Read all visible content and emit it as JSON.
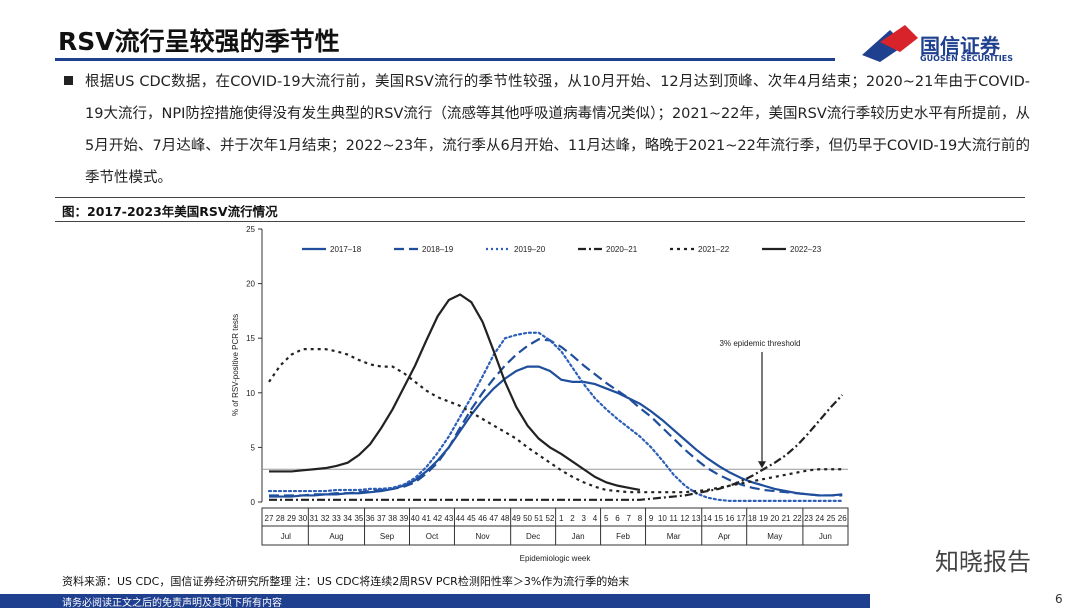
{
  "header": {
    "title": "RSV流行呈较强的季节性",
    "logo_cn": "国信证券",
    "logo_en": "GUOSEN SECURITIES"
  },
  "body": {
    "bullet": "根据US CDC数据，在COVID-19大流行前，美国RSV流行的季节性较强，从10月开始、12月达到顶峰、次年4月结束；2020~21年由于COVID-19大流行，NPI防控措施使得没有发生典型的RSV流行（流感等其他呼吸道病毒情况类似）；2021~22年，美国RSV流行季较历史水平有所提前，从5月开始、7月达峰、并于次年1月结束；2022~23年，流行季从6月开始、11月达峰，略晚于2021~22年流行季，但仍早于COVID-19大流行前的季节性模式。"
  },
  "figure": {
    "caption": "图：2017-2023年美国RSV流行情况",
    "source": "资料来源：US CDC，国信证券经济研究所整理   注：US CDC将连续2周RSV PCR检测阳性率＞3%作为流行季的始末"
  },
  "chart_data": {
    "type": "line",
    "x_label": "Epidemiologic week",
    "y_label": "% of RSV-positive PCR tests",
    "categories": [
      "27",
      "28",
      "29",
      "30",
      "31",
      "32",
      "33",
      "34",
      "35",
      "36",
      "37",
      "38",
      "39",
      "40",
      "41",
      "42",
      "43",
      "44",
      "45",
      "46",
      "47",
      "48",
      "49",
      "50",
      "51",
      "52",
      "1",
      "2",
      "3",
      "4",
      "5",
      "6",
      "7",
      "8",
      "9",
      "10",
      "11",
      "12",
      "13",
      "14",
      "15",
      "16",
      "17",
      "18",
      "19",
      "20",
      "21",
      "22",
      "23",
      "24",
      "25",
      "26"
    ],
    "months": [
      "Jul",
      "Aug",
      "Sep",
      "Oct",
      "Nov",
      "Dec",
      "Jan",
      "Feb",
      "Mar",
      "Apr",
      "May",
      "Jun"
    ],
    "ylim": [
      0,
      25
    ],
    "yticks": [
      0,
      5,
      10,
      15,
      20,
      25
    ],
    "legend": "top",
    "grid": false,
    "threshold": {
      "value": 3,
      "label": "3% epidemic threshold"
    },
    "series": [
      {
        "name": "2017–18",
        "color": "#1f4e9c",
        "dash": "solid",
        "values": [
          0.5,
          0.5,
          0.5,
          0.6,
          0.6,
          0.7,
          0.7,
          0.8,
          0.8,
          0.9,
          1.0,
          1.2,
          1.5,
          2.0,
          2.8,
          3.8,
          5.0,
          6.5,
          8.0,
          9.3,
          10.4,
          11.3,
          12.0,
          12.4,
          12.4,
          12.0,
          11.2,
          11.0,
          11.0,
          10.8,
          10.4,
          10.0,
          9.5,
          9.0,
          8.3,
          7.5,
          6.6,
          5.7,
          4.8,
          4.0,
          3.3,
          2.7,
          2.2,
          1.8,
          1.5,
          1.2,
          1.0,
          0.8,
          0.7,
          0.6,
          0.6,
          0.7
        ]
      },
      {
        "name": "2018–19",
        "color": "#1f4e9c",
        "dash": "dashed",
        "values": [
          0.6,
          0.6,
          0.6,
          0.6,
          0.7,
          0.7,
          0.8,
          0.8,
          0.9,
          1.0,
          1.1,
          1.2,
          1.4,
          1.8,
          2.6,
          3.6,
          5.0,
          6.8,
          8.5,
          10.0,
          11.3,
          12.5,
          13.5,
          14.3,
          14.9,
          14.8,
          14.2,
          13.4,
          12.5,
          11.7,
          10.9,
          10.2,
          9.5,
          8.6,
          7.8,
          6.8,
          5.8,
          4.8,
          3.9,
          3.1,
          2.5,
          2.0,
          1.6,
          1.3,
          1.1,
          1.0,
          0.9,
          0.8,
          0.7,
          0.6,
          0.6,
          0.6
        ]
      },
      {
        "name": "2019–20",
        "color": "#2e5fb8",
        "dash": "dotted",
        "values": [
          1.0,
          1.0,
          1.0,
          1.0,
          1.0,
          1.0,
          1.1,
          1.1,
          1.1,
          1.2,
          1.2,
          1.3,
          1.6,
          2.2,
          3.2,
          4.5,
          6.0,
          7.8,
          9.6,
          11.5,
          13.5,
          15.0,
          15.3,
          15.5,
          15.5,
          14.8,
          13.8,
          12.3,
          10.8,
          9.5,
          8.5,
          7.6,
          6.8,
          6.0,
          5.0,
          3.8,
          2.5,
          1.5,
          0.8,
          0.4,
          0.2,
          0.1,
          0.1,
          0.1,
          0.1,
          0.1,
          0.1,
          0.1,
          0.1,
          0.1,
          0.1,
          0.1
        ]
      },
      {
        "name": "2020–21",
        "color": "#222222",
        "dash": "dashdot",
        "values": [
          0.2,
          0.2,
          0.2,
          0.2,
          0.2,
          0.2,
          0.2,
          0.2,
          0.2,
          0.2,
          0.2,
          0.2,
          0.2,
          0.2,
          0.2,
          0.2,
          0.2,
          0.2,
          0.2,
          0.2,
          0.2,
          0.2,
          0.2,
          0.2,
          0.2,
          0.2,
          0.2,
          0.2,
          0.2,
          0.2,
          0.2,
          0.2,
          0.2,
          0.2,
          0.3,
          0.4,
          0.5,
          0.6,
          0.8,
          1.0,
          1.2,
          1.5,
          1.9,
          2.4,
          3.0,
          3.6,
          4.3,
          5.2,
          6.3,
          7.5,
          8.7,
          9.8
        ]
      },
      {
        "name": "2021–22",
        "color": "#222222",
        "dash": "shortdot",
        "values": [
          11.0,
          12.5,
          13.5,
          14.0,
          14.0,
          14.0,
          13.8,
          13.5,
          13.0,
          12.6,
          12.4,
          12.4,
          11.8,
          11.0,
          10.2,
          9.6,
          9.2,
          8.8,
          8.2,
          7.6,
          7.0,
          6.4,
          5.8,
          5.0,
          4.3,
          3.6,
          2.9,
          2.3,
          1.8,
          1.4,
          1.1,
          1.0,
          0.9,
          0.9,
          0.9,
          0.9,
          0.9,
          0.9,
          1.0,
          1.1,
          1.3,
          1.5,
          1.7,
          1.9,
          2.1,
          2.3,
          2.5,
          2.7,
          2.9,
          3.0,
          3.0,
          3.0
        ]
      },
      {
        "name": "2022–23",
        "color": "#222222",
        "dash": "solid",
        "values": [
          2.8,
          2.8,
          2.8,
          2.9,
          3.0,
          3.1,
          3.3,
          3.6,
          4.3,
          5.3,
          6.8,
          8.5,
          10.5,
          12.5,
          14.8,
          17.0,
          18.5,
          19.0,
          18.3,
          16.5,
          13.8,
          11.0,
          8.7,
          7.0,
          5.8,
          5.0,
          4.4,
          3.7,
          3.0,
          2.3,
          1.8,
          1.5,
          1.3,
          1.1,
          null,
          null,
          null,
          null,
          null,
          null,
          null,
          null,
          null,
          null,
          null,
          null,
          null,
          null,
          null,
          null,
          null,
          null
        ]
      }
    ]
  },
  "footer": {
    "disclaimer": "请务必阅读正文之后的免责声明及其项下所有内容",
    "page": "6",
    "watermark": "知晓报告"
  }
}
